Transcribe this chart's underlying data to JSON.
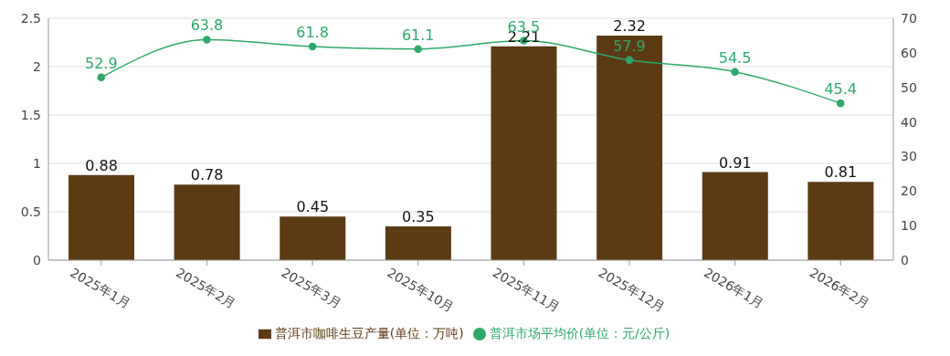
{
  "chart_data": {
    "type": "bar",
    "categories": [
      "2025年1月",
      "2025年2月",
      "2025年3月",
      "2025年10月",
      "2025年11月",
      "2025年12月",
      "2026年1月",
      "2026年2月"
    ],
    "series": [
      {
        "name": "普洱市咖啡生豆产量(单位：万吨)",
        "color": "#5c3a14",
        "values": [
          0.88,
          0.78,
          0.45,
          0.35,
          2.21,
          2.32,
          0.91,
          0.81
        ]
      },
      {
        "name": "普洱市场平均价(单位：元/公斤)",
        "type": "line",
        "axis": "y2",
        "color": "#2ea86b",
        "values": [
          52.9,
          63.8,
          61.8,
          61.1,
          63.5,
          57.9,
          54.5,
          45.4
        ]
      }
    ],
    "ylim": [
      0,
      2.5
    ],
    "yticks": [
      0,
      0.5,
      1,
      1.5,
      2,
      2.5
    ],
    "y2lim": [
      0,
      70
    ],
    "y2ticks": [
      0,
      10,
      20,
      30,
      40,
      50,
      60,
      70
    ],
    "grid": "y",
    "legend": "bottom",
    "marker": "circle",
    "line_style": "solid",
    "data_labels": true
  }
}
